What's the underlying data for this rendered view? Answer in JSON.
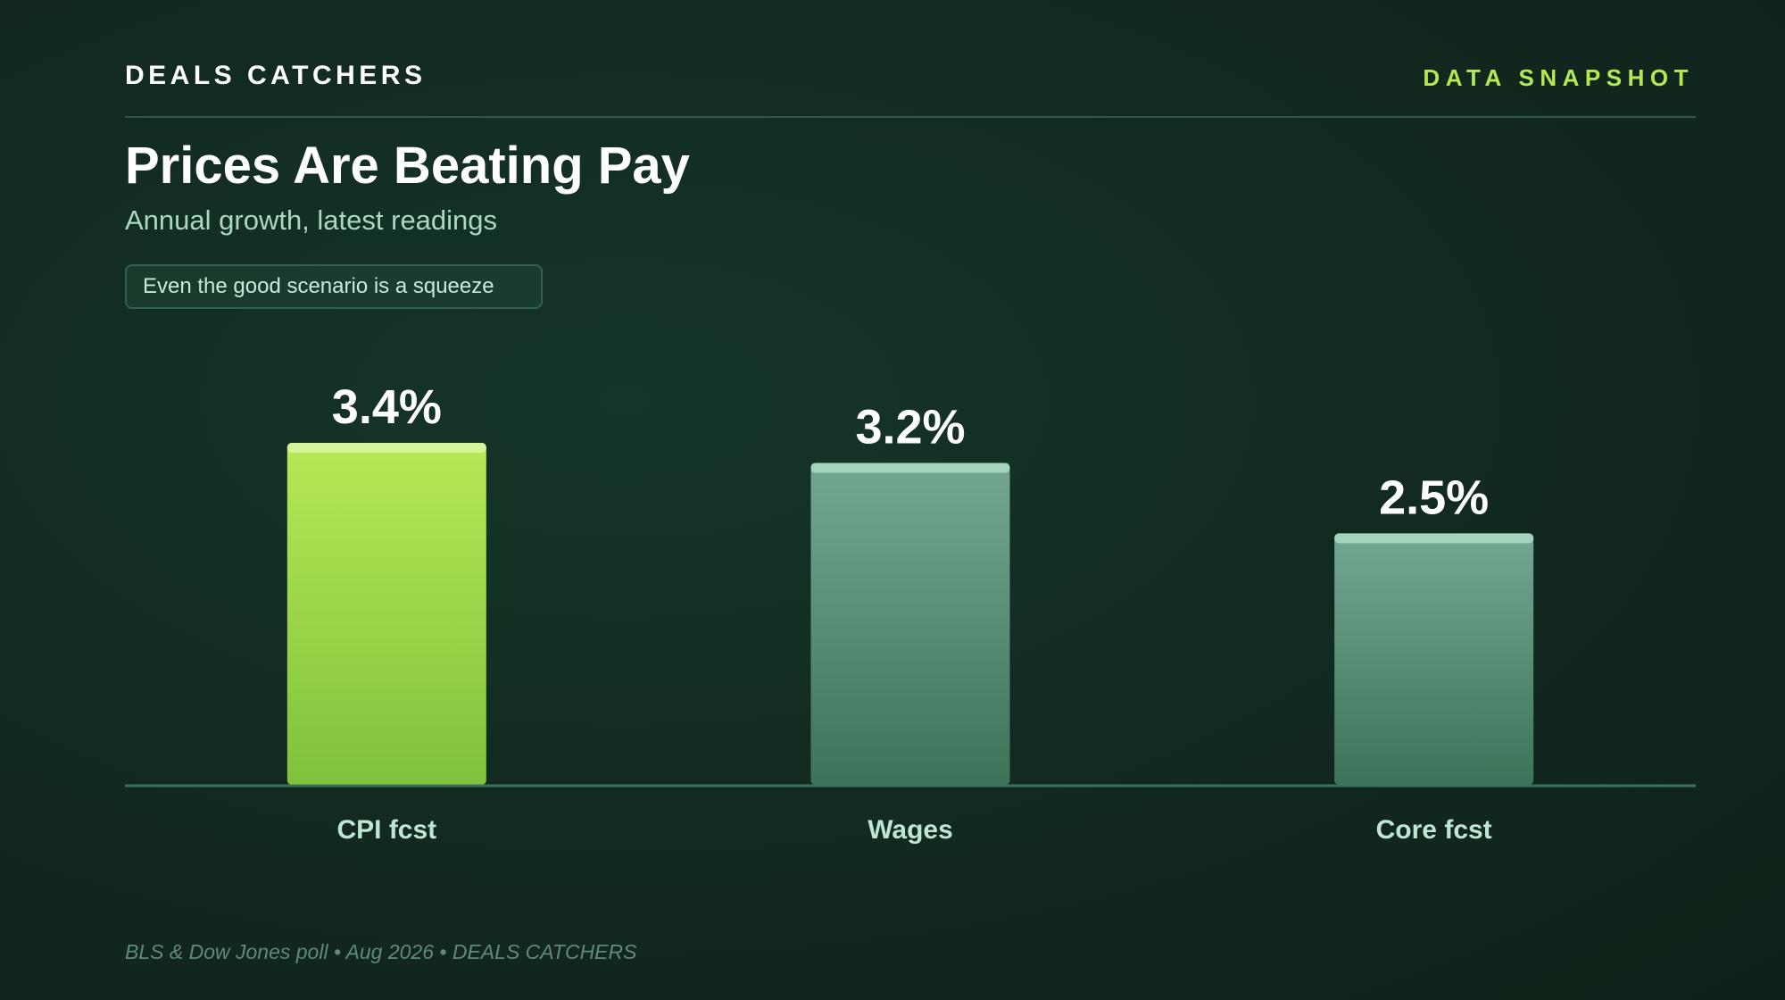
{
  "header": {
    "brand": "DEALS CATCHERS",
    "tag": "DATA SNAPSHOT"
  },
  "title": "Prices Are Beating Pay",
  "subtitle": "Annual growth, latest readings",
  "callout": "Even the good scenario is a squeeze",
  "source": "BLS & Dow Jones poll • Aug 2026 • DEALS CATCHERS",
  "colors": {
    "highlight": "#b5e853",
    "muted_bar": "#6fa38e",
    "background": "#12291f",
    "tag": "#b5e853"
  },
  "chart_data": {
    "type": "bar",
    "categories": [
      "CPI fcst",
      "Wages",
      "Core fcst"
    ],
    "values": [
      3.4,
      3.2,
      2.5
    ],
    "value_labels": [
      "3.4%",
      "3.2%",
      "2.5%"
    ],
    "highlight_index": 0,
    "ylim": [
      0,
      3.4
    ],
    "grid": false,
    "legend": "none"
  }
}
